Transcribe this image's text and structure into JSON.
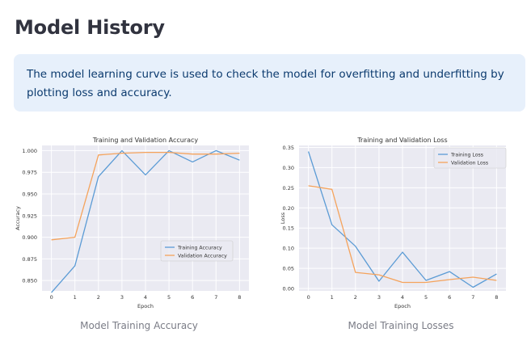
{
  "page": {
    "title": "Model History",
    "info_text": "The model learning curve is used to check the model for overfitting and underfitting by plotting loss and accuracy."
  },
  "chart_data": [
    {
      "type": "line",
      "title": "Training and Validation Accuracy",
      "xlabel": "Epoch",
      "ylabel": "Accuracy",
      "x": [
        0,
        1,
        2,
        3,
        4,
        5,
        6,
        7,
        8
      ],
      "xticks": [
        "0",
        "1",
        "2",
        "3",
        "4",
        "5",
        "6",
        "7",
        "8"
      ],
      "yticks": [
        "0.850",
        "0.875",
        "0.900",
        "0.925",
        "0.950",
        "0.975",
        "1.000"
      ],
      "ylim": [
        0.838,
        1.006
      ],
      "grid": true,
      "legend_position": "bottom-right",
      "series": [
        {
          "name": "Training Accuracy",
          "color": "#5b9bd5",
          "values": [
            0.836,
            0.867,
            0.97,
            1.0,
            0.972,
            1.0,
            0.987,
            1.0,
            0.989
          ]
        },
        {
          "name": "Validation Accuracy",
          "color": "#f5a35c",
          "values": [
            0.897,
            0.9,
            0.995,
            0.997,
            0.998,
            0.998,
            0.996,
            0.996,
            0.997
          ]
        }
      ],
      "caption": "Model Training Accuracy"
    },
    {
      "type": "line",
      "title": "Training and Validation Loss",
      "xlabel": "Epoch",
      "ylabel": "Loss",
      "x": [
        0,
        1,
        2,
        3,
        4,
        5,
        6,
        7,
        8
      ],
      "xticks": [
        "0",
        "1",
        "2",
        "3",
        "4",
        "5",
        "6",
        "7",
        "8"
      ],
      "yticks": [
        "0.00",
        "0.05",
        "0.10",
        "0.15",
        "0.20",
        "0.25",
        "0.30",
        "0.35"
      ],
      "ylim": [
        -0.006,
        0.355
      ],
      "grid": true,
      "legend_position": "top-right",
      "series": [
        {
          "name": "Training Loss",
          "color": "#5b9bd5",
          "values": [
            0.34,
            0.158,
            0.105,
            0.018,
            0.09,
            0.02,
            0.042,
            0.003,
            0.036
          ]
        },
        {
          "name": "Validation Loss",
          "color": "#f5a35c",
          "values": [
            0.255,
            0.246,
            0.04,
            0.034,
            0.015,
            0.015,
            0.022,
            0.028,
            0.02
          ]
        }
      ],
      "caption": "Model Training Losses"
    }
  ]
}
